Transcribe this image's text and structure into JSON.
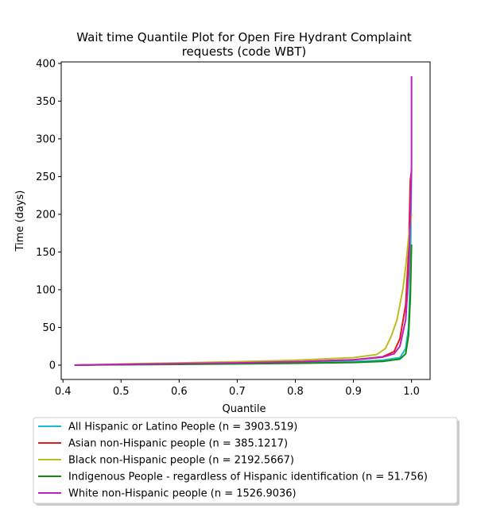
{
  "chart_data": {
    "type": "line",
    "title_lines": [
      "Wait time Quantile Plot for Open Fire Hydrant Complaint",
      "requests (code WBT)"
    ],
    "xlabel": "Quantile",
    "ylabel": "Time (days)",
    "xlim": [
      0.397,
      1.032
    ],
    "ylim": [
      -19,
      402
    ],
    "xticks": [
      0.4,
      0.5,
      0.6,
      0.7,
      0.8,
      0.9,
      1.0
    ],
    "xtick_labels": [
      "0.4",
      "0.5",
      "0.6",
      "0.7",
      "0.8",
      "0.9",
      "1.0"
    ],
    "yticks": [
      0,
      50,
      100,
      150,
      200,
      250,
      300,
      350,
      400
    ],
    "ytick_labels": [
      "0",
      "50",
      "100",
      "150",
      "200",
      "250",
      "300",
      "350",
      "400"
    ],
    "grid": false,
    "legend_position": "below plot",
    "series": [
      {
        "name": "All Hispanic or Latino People (n = 3903.519)",
        "color": "#17becf",
        "x": [
          0.42,
          0.5,
          0.6,
          0.7,
          0.8,
          0.9,
          0.95,
          0.98,
          0.99,
          0.995,
          0.998,
          1.0
        ],
        "y": [
          0,
          0.8,
          1.6,
          2.5,
          3.5,
          4.8,
          6.5,
          10,
          22,
          50,
          120,
          260
        ]
      },
      {
        "name": "Asian non-Hispanic people (n = 385.1217)",
        "color": "#e31a1c",
        "x": [
          0.42,
          0.5,
          0.6,
          0.7,
          0.8,
          0.9,
          0.95,
          0.97,
          0.98,
          0.99,
          0.995,
          0.998,
          1.0
        ],
        "y": [
          0,
          1,
          2,
          3.2,
          4.5,
          7,
          11,
          18,
          35,
          80,
          150,
          245,
          258
        ]
      },
      {
        "name": "Black non-Hispanic people (n = 2192.5667)",
        "color": "#bcbd22",
        "x": [
          0.42,
          0.5,
          0.6,
          0.7,
          0.8,
          0.9,
          0.94,
          0.955,
          0.965,
          0.975,
          0.985,
          0.99,
          0.995,
          1.0
        ],
        "y": [
          0,
          1.5,
          3,
          4.5,
          6.5,
          10,
          14,
          22,
          38,
          60,
          100,
          130,
          170,
          200
        ]
      },
      {
        "name": "Indigenous People - regardless of Hispanic identification (n = 51.756)",
        "color": "#138c13",
        "x": [
          0.42,
          0.5,
          0.6,
          0.7,
          0.8,
          0.9,
          0.95,
          0.98,
          0.99,
          0.995,
          0.998,
          1.0
        ],
        "y": [
          0,
          0.5,
          1,
          1.6,
          2.4,
          3.5,
          5,
          8,
          15,
          40,
          90,
          160
        ]
      },
      {
        "name": "White non-Hispanic people (n = 1526.9036)",
        "color": "#bf1fbf",
        "x": [
          0.42,
          0.5,
          0.6,
          0.7,
          0.8,
          0.9,
          0.95,
          0.97,
          0.98,
          0.99,
          0.995,
          0.998,
          1.0,
          1.0
        ],
        "y": [
          0,
          1,
          2,
          3,
          4.5,
          7,
          10.5,
          15,
          25,
          60,
          120,
          200,
          260,
          383
        ]
      }
    ]
  }
}
